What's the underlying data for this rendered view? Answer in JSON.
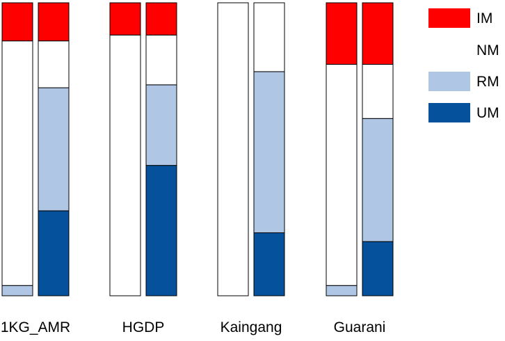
{
  "chart_data": {
    "type": "bar",
    "stacked": true,
    "normalized": true,
    "segment_order": [
      "UM",
      "RM",
      "NM",
      "IM"
    ],
    "colors": {
      "IM": "#ff0000",
      "NM": "#ffffff",
      "RM": "#afc7e5",
      "UM": "#05519b",
      "outline": "#000000"
    },
    "legend": {
      "position": "right",
      "entries": [
        {
          "key": "IM",
          "label": "IM"
        },
        {
          "key": "NM",
          "label": "NM"
        },
        {
          "key": "RM",
          "label": "RM"
        },
        {
          "key": "UM",
          "label": "UM"
        }
      ]
    },
    "groups": [
      {
        "label": "1KG_AMR",
        "bars": [
          {
            "IM": 0.13,
            "NM": 0.835,
            "RM": 0.035,
            "UM": 0.0
          },
          {
            "IM": 0.13,
            "NM": 0.16,
            "RM": 0.42,
            "UM": 0.29
          }
        ]
      },
      {
        "label": "HGDP",
        "bars": [
          {
            "IM": 0.11,
            "NM": 0.89,
            "RM": 0.0,
            "UM": 0.0
          },
          {
            "IM": 0.11,
            "NM": 0.17,
            "RM": 0.275,
            "UM": 0.445
          }
        ]
      },
      {
        "label": "Kaingang",
        "bars": [
          {
            "IM": 0.0,
            "NM": 1.0,
            "RM": 0.0,
            "UM": 0.0
          },
          {
            "IM": 0.0,
            "NM": 0.235,
            "RM": 0.55,
            "UM": 0.215
          }
        ]
      },
      {
        "label": "Guarani",
        "bars": [
          {
            "IM": 0.21,
            "NM": 0.755,
            "RM": 0.035,
            "UM": 0.0
          },
          {
            "IM": 0.21,
            "NM": 0.185,
            "RM": 0.42,
            "UM": 0.185
          }
        ]
      }
    ]
  }
}
